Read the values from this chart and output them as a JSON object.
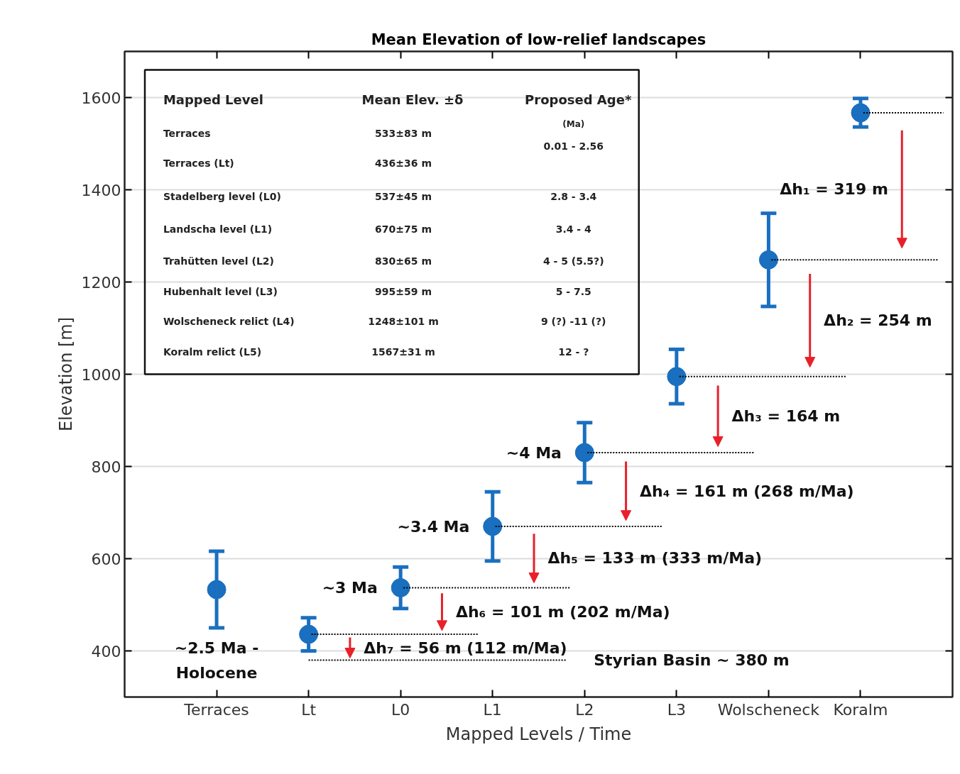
{
  "chart_data": {
    "type": "scatter",
    "title": "Mean Elevation of low-relief landscapes",
    "xlabel": "Mapped Levels / Time",
    "ylabel": "Elevation [m]",
    "categories": [
      "Terraces",
      "Lt",
      "L0",
      "L1",
      "L2",
      "L3",
      "Wolscheneck",
      "Koralm"
    ],
    "ylim": [
      300,
      1700
    ],
    "yticks": [
      400,
      600,
      800,
      1000,
      1200,
      1400,
      1600
    ],
    "grid": "y",
    "marker": "circle",
    "series": [
      {
        "color": "#1a6fbf",
        "values": [
          533,
          436,
          537,
          670,
          830,
          995,
          1248,
          1567
        ],
        "errors": [
          83,
          36,
          45,
          75,
          65,
          59,
          101,
          31
        ]
      }
    ],
    "ref_lines": [
      {
        "axis": "y",
        "value": 380,
        "label": "Styrian Basin ~ 380 m",
        "color": "#000000",
        "line_style": "dotted"
      },
      {
        "axis": "y",
        "value": 436,
        "color": "#000000",
        "line_style": "dotted"
      },
      {
        "axis": "y",
        "value": 537,
        "color": "#000000",
        "line_style": "dotted"
      },
      {
        "axis": "y",
        "value": 670,
        "color": "#000000",
        "line_style": "dotted"
      },
      {
        "axis": "y",
        "value": 830,
        "color": "#000000",
        "line_style": "dotted"
      },
      {
        "axis": "y",
        "value": 995,
        "color": "#000000",
        "line_style": "dotted"
      },
      {
        "axis": "y",
        "value": 1248,
        "color": "#000000",
        "line_style": "dotted"
      },
      {
        "axis": "y",
        "value": 1567,
        "color": "#000000",
        "line_style": "dotted"
      }
    ],
    "annotations": [
      {
        "text": "~4 Ma",
        "x": "L2",
        "y": 830
      },
      {
        "text": "~3.4 Ma",
        "x": "L1",
        "y": 670
      },
      {
        "text": "~3 Ma",
        "x": "L0",
        "y": 537
      },
      "Δh₇ = 56 m (112 m/Ma)",
      "Δh₆ = 101 m (202 m/Ma)",
      "Δh₅ = 133 m (333 m/Ma)",
      "Δh₄ = 161 m (268 m/Ma)",
      "Δh₃ = 164 m",
      "Δh₂ = 254 m",
      "Δh₁ = 319 m",
      "~2.5 Ma -\nHolocene",
      "Mapped Level",
      "Mean Elev. ±δ",
      "Proposed Age*",
      "(Ma)",
      "Terraces",
      "Terraces (Lt)",
      "Stadelberg level (L0)",
      "Landscha level (L1)",
      "Trahütten level (L2)",
      "Hubenhalt level (L3)",
      "Wolscheneck relict (L4)",
      "Koralm relict (L5)",
      "533±83 m",
      "436±36 m",
      "537±45 m",
      "670±75 m",
      "830±65 m",
      "995±59 m",
      "1248±101 m",
      "1567±31 m",
      "0.01 - 2.56",
      "2.8 - 3.4",
      "3.4 - 4",
      "4 - 5 (5.5?)",
      "5 - 7.5",
      "9 (?) -11 (?)",
      "12 - ?"
    ]
  }
}
